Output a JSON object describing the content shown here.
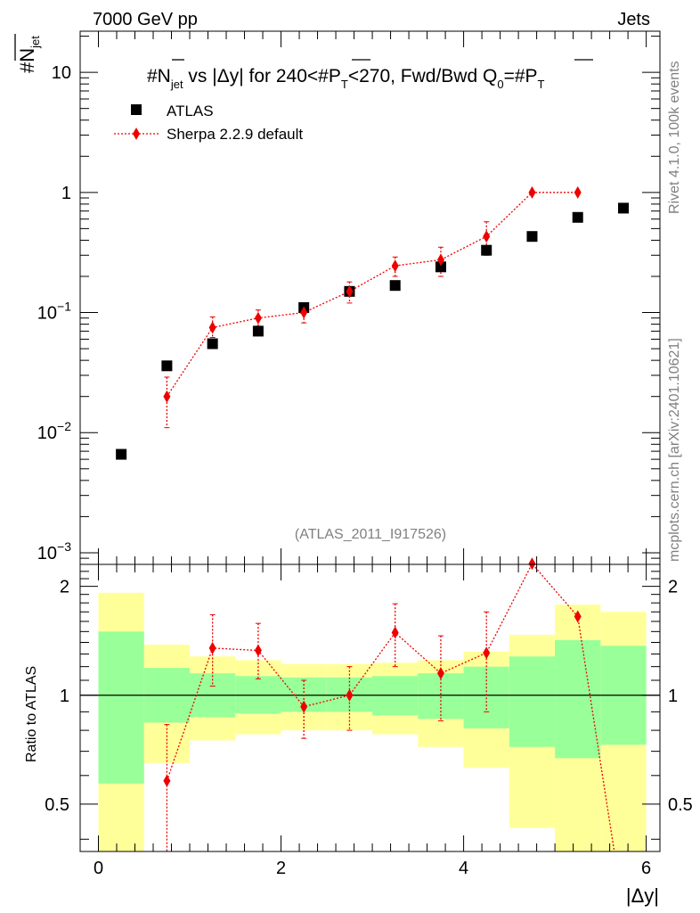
{
  "header": {
    "energy_label": "7000 GeV pp",
    "process_label": "Jets",
    "rivet_label": "Rivet 4.1.0,  100k events",
    "mcplots_label": "mcplots.cern.ch [arXiv:2401.10621]",
    "analysis_id": "(ATLAS_2011_I917526)"
  },
  "colors": {
    "data": "#000000",
    "mc": "#ee0000",
    "band_inner": "#99ff99",
    "band_outer": "#ffff99"
  },
  "chart_data": [
    {
      "type": "scatter",
      "title": "#N̅jet vs |Δy| for 240<#P̅T<270, Fwd/Bwd Q0=#P̅T",
      "title_parts": {
        "t1": "#N",
        "t2": "jet",
        "t3": " vs |Δy| for 240<#",
        "t4": "P",
        "t5": "T",
        "t6": "<270, Fwd/Bwd Q",
        "t7": "0",
        "t8": "=#",
        "t9": "P",
        "t10": "T"
      },
      "ylabel": {
        "main": "#N",
        "sub": "jet"
      },
      "yscale": "log",
      "ylim": [
        0.0008,
        22
      ],
      "xlim": [
        -0.2,
        6.15
      ],
      "ytick_labels": [
        {
          "value": 10,
          "mant": "10",
          "exp": ""
        },
        {
          "value": 1,
          "mant": "1",
          "exp": ""
        },
        {
          "value": 0.1,
          "mant": "10",
          "exp": "−1"
        },
        {
          "value": 0.01,
          "mant": "10",
          "exp": "−2"
        },
        {
          "value": 0.001,
          "mant": "10",
          "exp": "−3"
        }
      ],
      "legend": {
        "placement": "top-left",
        "entries": [
          "ATLAS",
          "Sherpa 2.2.9 default"
        ]
      },
      "series": [
        {
          "name": "ATLAS",
          "marker": "square",
          "x": [
            0.25,
            0.75,
            1.25,
            1.75,
            2.25,
            2.75,
            3.25,
            3.75,
            4.25,
            4.75,
            5.25,
            5.75
          ],
          "values": [
            0.0066,
            0.036,
            0.055,
            0.07,
            0.11,
            0.15,
            0.168,
            0.24,
            0.33,
            0.43,
            0.62,
            0.74
          ]
        },
        {
          "name": "Sherpa 2.2.9 default",
          "marker": "diamond",
          "line": "dotted",
          "x": [
            0.75,
            1.25,
            1.75,
            2.25,
            2.75,
            3.25,
            3.75,
            4.25,
            4.75,
            5.25
          ],
          "values": [
            0.02,
            0.075,
            0.09,
            0.1,
            0.15,
            0.245,
            0.275,
            0.43,
            1.0,
            1.0
          ],
          "err_low": [
            0.011,
            0.062,
            0.077,
            0.082,
            0.12,
            0.2,
            0.2,
            0.3,
            1.0,
            1.0
          ],
          "err_high": [
            0.029,
            0.092,
            0.105,
            0.118,
            0.18,
            0.29,
            0.35,
            0.57,
            1.0,
            1.0
          ]
        }
      ]
    },
    {
      "type": "line",
      "ylabel": "Ratio to ATLAS",
      "xlabel": "|Δy|",
      "ylim": [
        0.37,
        2.3
      ],
      "xlim": [
        -0.2,
        6.15
      ],
      "yticks": [
        0.5,
        1,
        2
      ],
      "ytick_labels": [
        "0.5",
        "1",
        "2"
      ],
      "xticks": [
        0,
        2,
        4,
        6
      ],
      "xtick_labels": [
        "0",
        "2",
        "4",
        "6"
      ],
      "reference_line": 1,
      "bands": {
        "edges": [
          0,
          0.5,
          1.0,
          1.5,
          2.0,
          2.5,
          3.0,
          3.5,
          4.0,
          4.5,
          5.0,
          5.5,
          6.0
        ],
        "outer_low": [
          0.37,
          0.65,
          0.75,
          0.78,
          0.8,
          0.8,
          0.78,
          0.72,
          0.63,
          0.43,
          0.37,
          0.37
        ],
        "outer_high": [
          1.92,
          1.38,
          1.28,
          1.25,
          1.22,
          1.22,
          1.23,
          1.25,
          1.32,
          1.47,
          1.78,
          1.7
        ],
        "inner_low": [
          0.57,
          0.84,
          0.87,
          0.89,
          0.9,
          0.9,
          0.88,
          0.86,
          0.81,
          0.72,
          0.67,
          0.73
        ],
        "inner_high": [
          1.5,
          1.19,
          1.15,
          1.13,
          1.12,
          1.12,
          1.13,
          1.15,
          1.2,
          1.28,
          1.42,
          1.37
        ]
      },
      "series": [
        {
          "name": "Sherpa 2.2.9 default / ATLAS",
          "x": [
            0.75,
            1.25,
            1.75,
            2.25,
            2.75,
            3.25,
            3.75,
            4.25,
            4.75,
            5.25,
            5.65
          ],
          "values": [
            0.58,
            1.35,
            1.33,
            0.93,
            1.0,
            1.49,
            1.15,
            1.31,
            2.31,
            1.65,
            0.37
          ],
          "err_low": [
            0.3,
            1.06,
            1.11,
            0.76,
            0.8,
            1.2,
            0.85,
            0.9,
            2.31,
            1.65,
            0.37
          ],
          "err_high": [
            0.83,
            1.67,
            1.58,
            1.1,
            1.2,
            1.79,
            1.46,
            1.7,
            2.31,
            1.65,
            0.37
          ],
          "has_marker": [
            true,
            true,
            true,
            true,
            true,
            true,
            true,
            true,
            true,
            true,
            false
          ]
        }
      ]
    }
  ]
}
